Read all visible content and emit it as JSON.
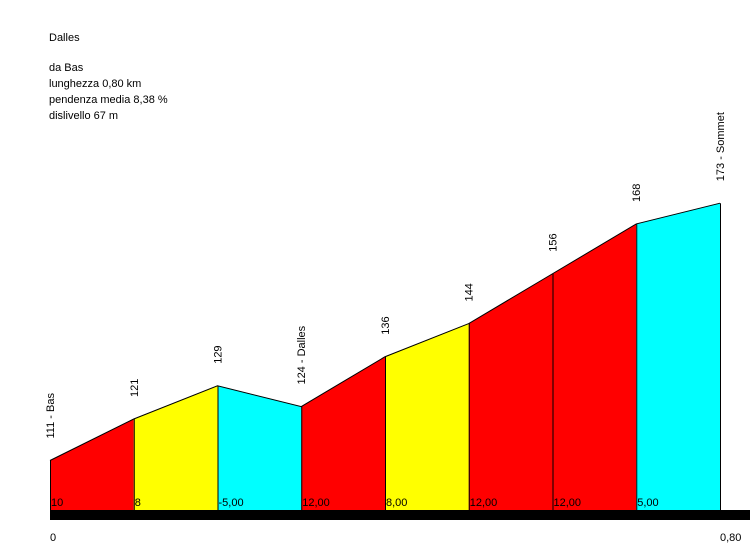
{
  "info": {
    "title": "Dalles",
    "from": "da Bas",
    "length": "lunghezza 0,80 km",
    "avg_gradient": "pendenza media 8,38 %",
    "elevation_gain": "dislivello 67 m"
  },
  "colors": {
    "red": "#ff0000",
    "yellow": "#ffff00",
    "cyan": "#00ffff",
    "baseline": "#000000"
  },
  "chart_data": {
    "type": "area",
    "title": "Dalles",
    "xlim": [
      0,
      0.8
    ],
    "x_tick_labels": [
      "0",
      "0,80"
    ],
    "points": [
      {
        "x": 0.0,
        "y": 111,
        "label": "111 - Bas"
      },
      {
        "x": 0.1,
        "y": 121,
        "label": "121"
      },
      {
        "x": 0.2,
        "y": 129,
        "label": "129"
      },
      {
        "x": 0.3,
        "y": 124,
        "label": "124 - Dalles"
      },
      {
        "x": 0.4,
        "y": 136,
        "label": "136"
      },
      {
        "x": 0.5,
        "y": 144,
        "label": "144"
      },
      {
        "x": 0.6,
        "y": 156,
        "label": "156"
      },
      {
        "x": 0.7,
        "y": 168,
        "label": "168"
      },
      {
        "x": 0.8,
        "y": 173,
        "label": "173 - Sommet"
      }
    ],
    "segments": [
      {
        "gradient": "10",
        "color": "red"
      },
      {
        "gradient": "8",
        "color": "yellow"
      },
      {
        "gradient": "-5,00",
        "color": "cyan"
      },
      {
        "gradient": "12,00",
        "color": "red"
      },
      {
        "gradient": "8,00",
        "color": "yellow"
      },
      {
        "gradient": "12,00",
        "color": "red"
      },
      {
        "gradient": "12,00",
        "color": "red"
      },
      {
        "gradient": "5,00",
        "color": "cyan"
      }
    ]
  }
}
